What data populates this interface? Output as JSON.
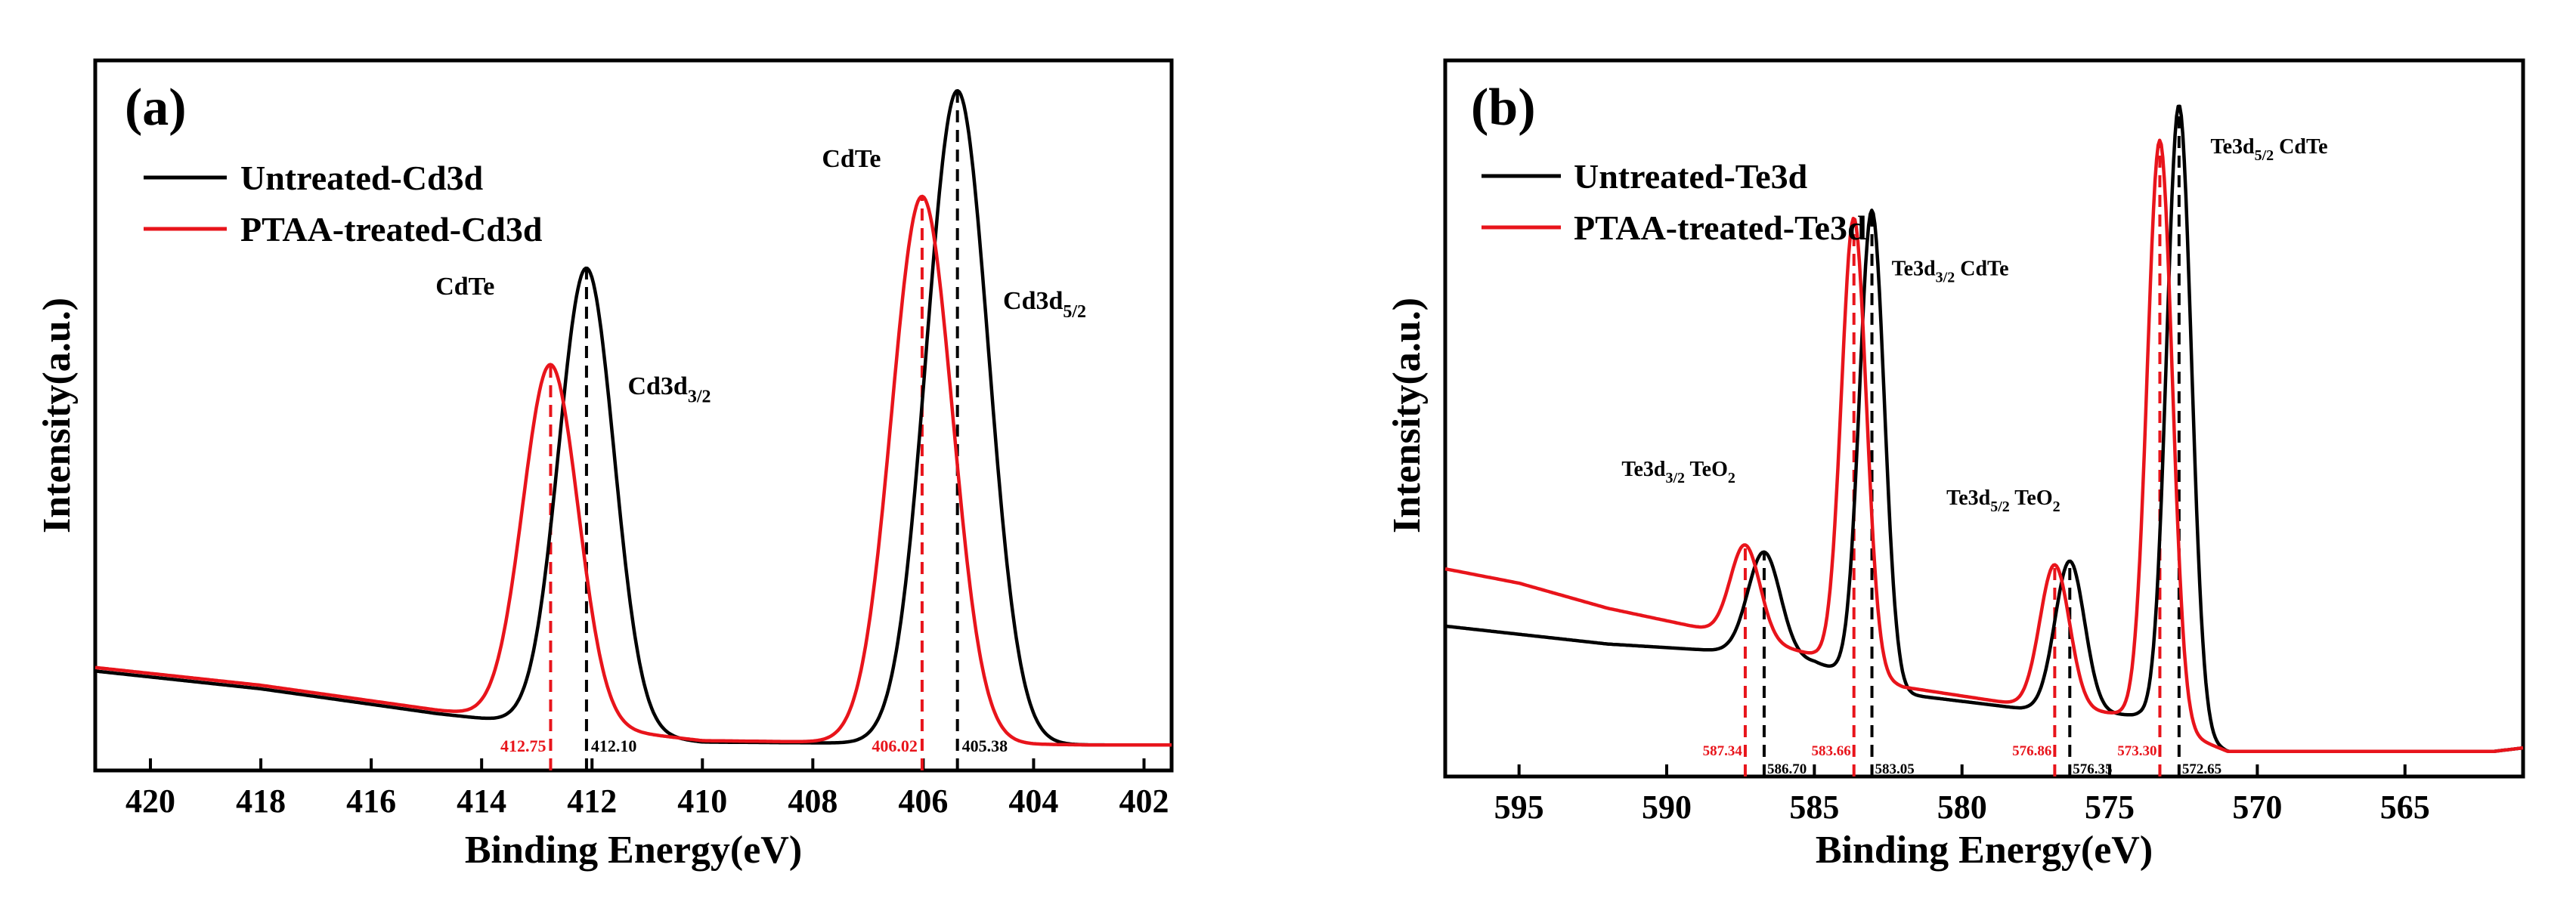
{
  "chart_data": [
    {
      "type": "line",
      "panel_label": "(a)",
      "xlabel": "Binding Energy(eV)",
      "ylabel": "Intensity(a.u.)",
      "xlim": [
        421,
        401.5
      ],
      "ylim": [
        0,
        100
      ],
      "x_reversed": true,
      "xticks": [
        420,
        418,
        416,
        414,
        412,
        410,
        408,
        406,
        404,
        402
      ],
      "legend": {
        "placement": "top-left",
        "entries": [
          "Untreated-Cd3d",
          "PTAA-treated-Cd3d"
        ]
      },
      "series": [
        {
          "name": "Untreated-Cd3d",
          "color": "#000000",
          "background": [
            [
              421,
              14.0
            ],
            [
              418,
              11.5
            ],
            [
              414.8,
              8.0
            ],
            [
              410,
              4.0
            ],
            [
              403,
              3.6
            ],
            [
              401.5,
              3.6
            ]
          ],
          "peaks": [
            {
              "center": 412.1,
              "height": 65.0,
              "sigma": 0.5
            },
            {
              "center": 405.38,
              "height": 92.0,
              "sigma": 0.56
            }
          ]
        },
        {
          "name": "PTAA-treated-Cd3d",
          "color": "#e8141b",
          "background": [
            [
              421,
              14.5
            ],
            [
              418,
              12.0
            ],
            [
              414.8,
              8.5
            ],
            [
              410,
              4.2
            ],
            [
              403,
              3.6
            ],
            [
              401.5,
              3.6
            ]
          ],
          "peaks": [
            {
              "center": 412.75,
              "height": 50.5,
              "sigma": 0.5
            },
            {
              "center": 406.02,
              "height": 77.0,
              "sigma": 0.55
            }
          ]
        }
      ],
      "reference_lines": [
        {
          "x": 412.75,
          "label": "412.75",
          "color": "#e8141b",
          "series": "PTAA-treated-Cd3d"
        },
        {
          "x": 412.1,
          "label": "412.10",
          "color": "#000000",
          "series": "Untreated-Cd3d"
        },
        {
          "x": 406.02,
          "label": "406.02",
          "color": "#e8141b",
          "series": "PTAA-treated-Cd3d"
        },
        {
          "x": 405.38,
          "label": "405.38",
          "color": "#000000",
          "series": "Untreated-Cd3d"
        }
      ],
      "annotations": [
        {
          "text": "CdTe",
          "x": 414.3,
          "y": 67
        },
        {
          "text": "CdTe",
          "x": 407.3,
          "y": 85
        },
        {
          "main": "Cd3d",
          "sub": "3/2",
          "after": "",
          "x": 410.6,
          "y": 53
        },
        {
          "main": "Cd3d",
          "sub": "5/2",
          "after": "",
          "x": 403.8,
          "y": 65
        }
      ]
    },
    {
      "type": "line",
      "panel_label": "(b)",
      "xlabel": "Binding Energy(eV)",
      "ylabel": "Intensity(a.u.)",
      "xlim": [
        597.5,
        561
      ],
      "ylim": [
        0,
        100
      ],
      "x_reversed": true,
      "xticks": [
        595,
        590,
        585,
        580,
        575,
        570,
        565
      ],
      "legend": {
        "placement": "top-left",
        "entries": [
          "Untreated-Te3d",
          "PTAA-treated-Te3d"
        ]
      },
      "series": [
        {
          "name": "Untreated-Te3d",
          "color": "#000000",
          "background": [
            [
              597.5,
              21.0
            ],
            [
              592,
              18.5
            ],
            [
              588,
              17.5
            ],
            [
              585,
              16.0
            ],
            [
              582,
              11.5
            ],
            [
              578,
              9.5
            ],
            [
              574,
              8.5
            ],
            [
              571,
              3.5
            ],
            [
              562,
              3.5
            ],
            [
              561,
              4.0
            ]
          ],
          "peaks": [
            {
              "center": 586.7,
              "height": 14.5,
              "sigma": 0.55
            },
            {
              "center": 583.05,
              "height": 66.0,
              "sigma": 0.42
            },
            {
              "center": 576.35,
              "height": 21.0,
              "sigma": 0.5
            },
            {
              "center": 572.65,
              "height": 87.5,
              "sigma": 0.42
            }
          ]
        },
        {
          "name": "PTAA-treated-Te3d",
          "color": "#e8141b",
          "background": [
            [
              597.5,
              29.0
            ],
            [
              595,
              27.0
            ],
            [
              592,
              23.5
            ],
            [
              588,
              20.0
            ],
            [
              585,
              17.0
            ],
            [
              582,
              12.5
            ],
            [
              578,
              10.0
            ],
            [
              574,
              8.5
            ],
            [
              571,
              3.5
            ],
            [
              562,
              3.5
            ],
            [
              561,
              4.0
            ]
          ],
          "peaks": [
            {
              "center": 587.34,
              "height": 13.0,
              "sigma": 0.5
            },
            {
              "center": 583.66,
              "height": 63.0,
              "sigma": 0.42
            },
            {
              "center": 576.86,
              "height": 20.0,
              "sigma": 0.5
            },
            {
              "center": 573.3,
              "height": 81.5,
              "sigma": 0.42
            }
          ]
        }
      ],
      "reference_lines": [
        {
          "x": 587.34,
          "label": "587.34",
          "color": "#e8141b",
          "series": "PTAA-treated-Te3d"
        },
        {
          "x": 586.7,
          "label": "586.70",
          "color": "#000000",
          "series": "Untreated-Te3d"
        },
        {
          "x": 583.66,
          "label": "583.66",
          "color": "#e8141b",
          "series": "PTAA-treated-Te3d"
        },
        {
          "x": 583.05,
          "label": "583.05",
          "color": "#000000",
          "series": "Untreated-Te3d"
        },
        {
          "x": 576.86,
          "label": "576.86",
          "color": "#e8141b",
          "series": "PTAA-treated-Te3d"
        },
        {
          "x": 576.35,
          "label": "576.35",
          "color": "#000000",
          "series": "Untreated-Te3d"
        },
        {
          "x": 573.3,
          "label": "573.30",
          "color": "#e8141b",
          "series": "PTAA-treated-Te3d"
        },
        {
          "x": 572.65,
          "label": "572.65",
          "color": "#000000",
          "series": "Untreated-Te3d"
        }
      ],
      "annotations": [
        {
          "main": "Te3d",
          "sub": "3/2",
          "after": " TeO",
          "sub2": "2",
          "x": 589.6,
          "y": 42
        },
        {
          "main": "Te3d",
          "sub": "3/2",
          "after": " CdTe",
          "x": 580.4,
          "y": 70
        },
        {
          "main": "Te3d",
          "sub": "5/2",
          "after": " TeO",
          "sub2": "2",
          "x": 578.6,
          "y": 38
        },
        {
          "main": "Te3d",
          "sub": "5/2",
          "after": " CdTe",
          "x": 569.6,
          "y": 87
        }
      ]
    }
  ]
}
